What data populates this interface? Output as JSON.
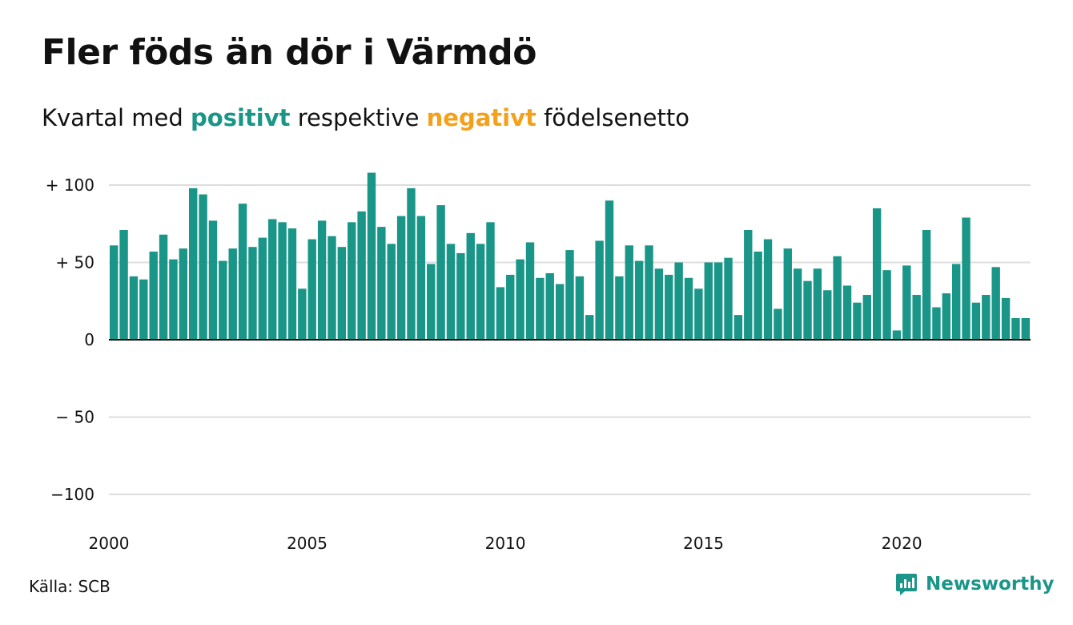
{
  "title": "Fler föds än dör i Värmdö",
  "subtitle": {
    "prefix": "Kvartal med",
    "positive": "positivt",
    "middle": "respektive",
    "negative": "negativt",
    "suffix": "födelsenetto"
  },
  "source": "Källa: SCB",
  "brand": {
    "name": "Newsworthy",
    "icon": "newsworthy-logo-icon"
  },
  "colors": {
    "positive": "#1a9688",
    "negative": "#f5a01a",
    "grid": "#dddddd",
    "text": "#111111"
  },
  "chart_data": {
    "type": "bar",
    "title": "",
    "xlabel": "",
    "ylabel": "",
    "ylim": [
      -100,
      110
    ],
    "grid": true,
    "legend": "none",
    "y_ticks": [
      {
        "value": 100,
        "label": "+ 100"
      },
      {
        "value": 50,
        "label": "+  50"
      },
      {
        "value": 0,
        "label": "0"
      },
      {
        "value": -50,
        "label": "− 50"
      },
      {
        "value": -100,
        "label": "−100"
      }
    ],
    "x_ticks": [
      "2000",
      "2005",
      "2010",
      "2015",
      "2020"
    ],
    "categories": [
      "2000 K1",
      "2000 K2",
      "2000 K3",
      "2000 K4",
      "2001 K1",
      "2001 K2",
      "2001 K3",
      "2001 K4",
      "2002 K1",
      "2002 K2",
      "2002 K3",
      "2002 K4",
      "2003 K1",
      "2003 K2",
      "2003 K3",
      "2003 K4",
      "2004 K1",
      "2004 K2",
      "2004 K3",
      "2004 K4",
      "2005 K1",
      "2005 K2",
      "2005 K3",
      "2005 K4",
      "2006 K1",
      "2006 K2",
      "2006 K3",
      "2006 K4",
      "2007 K1",
      "2007 K2",
      "2007 K3",
      "2007 K4",
      "2008 K1",
      "2008 K2",
      "2008 K3",
      "2008 K4",
      "2009 K1",
      "2009 K2",
      "2009 K3",
      "2009 K4",
      "2010 K1",
      "2010 K2",
      "2010 K3",
      "2010 K4",
      "2011 K1",
      "2011 K2",
      "2011 K3",
      "2011 K4",
      "2012 K1",
      "2012 K2",
      "2012 K3",
      "2012 K4",
      "2013 K1",
      "2013 K2",
      "2013 K3",
      "2013 K4",
      "2014 K1",
      "2014 K2",
      "2014 K3",
      "2014 K4",
      "2015 K1",
      "2015 K2",
      "2015 K3",
      "2015 K4",
      "2016 K1",
      "2016 K2",
      "2016 K3",
      "2016 K4",
      "2017 K1",
      "2017 K2",
      "2017 K3",
      "2017 K4",
      "2018 K1",
      "2018 K2",
      "2018 K3",
      "2018 K4",
      "2019 K1",
      "2019 K2",
      "2019 K3",
      "2019 K4",
      "2020 K1",
      "2020 K2",
      "2020 K3",
      "2020 K4",
      "2021 K1",
      "2021 K2",
      "2021 K3",
      "2021 K4",
      "2022 K1",
      "2022 K2",
      "2022 K3",
      "2022 K4",
      "2023 K1"
    ],
    "values": [
      61,
      71,
      41,
      39,
      57,
      68,
      52,
      59,
      98,
      94,
      77,
      51,
      59,
      88,
      60,
      66,
      78,
      76,
      72,
      33,
      65,
      77,
      67,
      60,
      76,
      83,
      108,
      73,
      62,
      80,
      98,
      80,
      49,
      87,
      62,
      56,
      69,
      62,
      76,
      34,
      42,
      52,
      63,
      40,
      43,
      36,
      58,
      41,
      16,
      64,
      90,
      41,
      61,
      51,
      61,
      46,
      42,
      50,
      40,
      33,
      50,
      50,
      53,
      16,
      71,
      57,
      65,
      20,
      59,
      46,
      38,
      46,
      32,
      54,
      35,
      24,
      29,
      85,
      45,
      6,
      48,
      29,
      71,
      21,
      30,
      49,
      79,
      24,
      29,
      47,
      27,
      14,
      14
    ]
  }
}
